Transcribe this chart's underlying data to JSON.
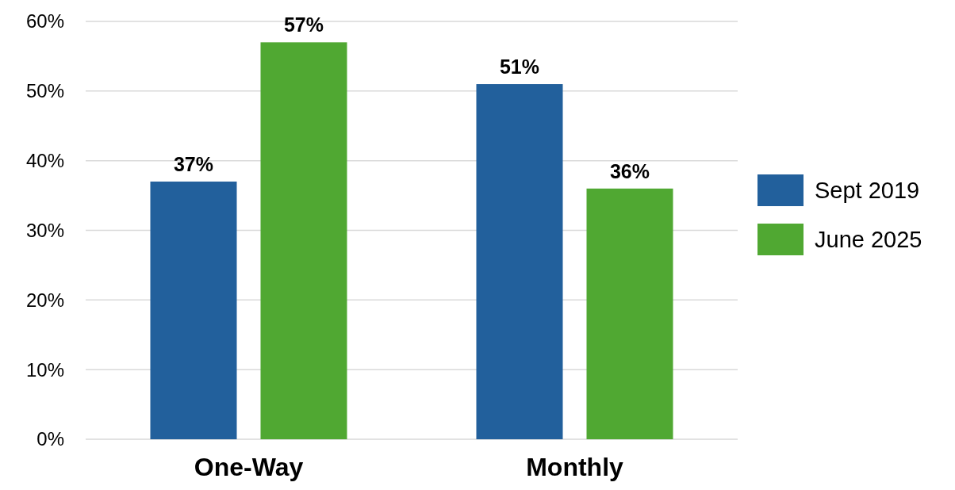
{
  "chart_data": {
    "type": "bar",
    "categories": [
      "One-Way",
      "Monthly"
    ],
    "series": [
      {
        "name": "Sept 2019",
        "color": "#22609c",
        "values": [
          37,
          51
        ],
        "value_labels": [
          "37%",
          "51%"
        ]
      },
      {
        "name": "June 2025",
        "color": "#50a832",
        "values": [
          57,
          36
        ],
        "value_labels": [
          "57%",
          "36%"
        ]
      }
    ],
    "ylim": [
      0,
      60
    ],
    "yticks": [
      {
        "value": 0,
        "label": "0%"
      },
      {
        "value": 10,
        "label": "10%"
      },
      {
        "value": 20,
        "label": "20%"
      },
      {
        "value": 30,
        "label": "30%"
      },
      {
        "value": 40,
        "label": "40%"
      },
      {
        "value": 50,
        "label": "50%"
      },
      {
        "value": 60,
        "label": "60%"
      }
    ],
    "grid": "y",
    "legend": "right"
  }
}
